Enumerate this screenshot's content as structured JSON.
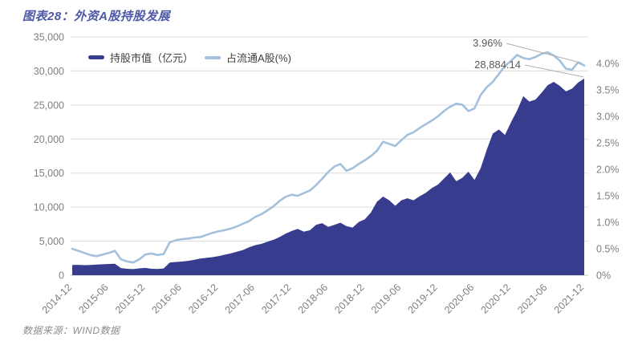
{
  "title": "图表28：外资A股持股发展",
  "source": "数据来源：WIND数据",
  "legend": {
    "series1": "持股市值（亿元）",
    "series2": "占流通A股(%)"
  },
  "annotations": {
    "pct_label": "3.96%",
    "value_label": "28,884.14"
  },
  "colors": {
    "area": "#383c8f",
    "line": "#a4c0dc",
    "grid": "#dcdcdc",
    "axis_line": "#c6c6c6",
    "axis_text": "#7f7f7f",
    "title": "#4d58a7",
    "annotation": "#595959",
    "leader": "#b0b0b0",
    "source_text": "#8c8c8c"
  },
  "chart_data": {
    "type": "area",
    "subtype": "area + line combo, dual axis",
    "x_interval": "monthly",
    "x_range": [
      "2014-12",
      "2021-12"
    ],
    "x_tick_labels": [
      "2014-12",
      "2015-06",
      "2015-12",
      "2016-06",
      "2016-12",
      "2017-06",
      "2017-12",
      "2018-06",
      "2018-12",
      "2019-06",
      "2019-12",
      "2020-06",
      "2020-12",
      "2021-06",
      "2021-12"
    ],
    "left_axis": {
      "title": "持股市值（亿元）",
      "min": 0,
      "max": 35000,
      "tick_step": 5000
    },
    "right_axis": {
      "title": "占流通A股(%)",
      "min": 0,
      "max": 4.5,
      "tick_step": 0.5,
      "top_label": "4.0%"
    },
    "grid": "horizontal only",
    "legend_position": "top-left inside",
    "series": [
      {
        "name": "持股市值（亿元）",
        "type": "area",
        "axis": "left",
        "values": [
          1500,
          1520,
          1480,
          1500,
          1560,
          1600,
          1650,
          1680,
          1050,
          950,
          900,
          1000,
          1080,
          950,
          920,
          980,
          1850,
          1950,
          2000,
          2100,
          2250,
          2450,
          2550,
          2650,
          2800,
          3000,
          3200,
          3450,
          3700,
          4100,
          4400,
          4600,
          4900,
          5200,
          5600,
          6100,
          6500,
          6800,
          6400,
          6600,
          7400,
          7650,
          7100,
          7400,
          7700,
          7200,
          7000,
          7800,
          8200,
          9200,
          10800,
          11550,
          11000,
          10200,
          11000,
          11300,
          11000,
          11600,
          12100,
          12800,
          13300,
          14200,
          15100,
          13800,
          14300,
          15200,
          14000,
          15700,
          18400,
          20800,
          21400,
          20600,
          22500,
          24200,
          26300,
          25500,
          25800,
          26800,
          27900,
          28400,
          27800,
          27000,
          27400,
          28300,
          28884.14
        ]
      },
      {
        "name": "占流通A股(%)",
        "type": "line",
        "axis": "right",
        "values": [
          0.5,
          0.46,
          0.42,
          0.38,
          0.36,
          0.39,
          0.42,
          0.46,
          0.3,
          0.26,
          0.24,
          0.3,
          0.39,
          0.41,
          0.38,
          0.4,
          0.62,
          0.66,
          0.68,
          0.69,
          0.71,
          0.72,
          0.76,
          0.8,
          0.83,
          0.85,
          0.88,
          0.92,
          0.97,
          1.02,
          1.1,
          1.15,
          1.22,
          1.3,
          1.4,
          1.48,
          1.52,
          1.5,
          1.55,
          1.6,
          1.7,
          1.82,
          1.95,
          2.05,
          2.1,
          1.97,
          2.02,
          2.1,
          2.17,
          2.25,
          2.35,
          2.52,
          2.48,
          2.44,
          2.55,
          2.65,
          2.7,
          2.78,
          2.85,
          2.92,
          3.0,
          3.1,
          3.18,
          3.24,
          3.22,
          3.1,
          3.15,
          3.4,
          3.55,
          3.65,
          3.8,
          3.95,
          4.05,
          4.16,
          4.1,
          4.08,
          4.12,
          4.18,
          4.21,
          4.15,
          4.05,
          3.9,
          3.88,
          4.02,
          3.96
        ]
      }
    ],
    "last_point": {
      "market_value": 28884.14,
      "pct_of_float": 3.96,
      "date": "2021-12"
    }
  }
}
